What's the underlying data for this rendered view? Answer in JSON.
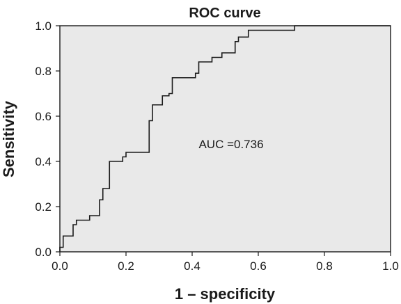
{
  "chart_data": {
    "type": "line",
    "title": "ROC curve",
    "xlabel": "1 – specificity",
    "ylabel": "Sensitivity",
    "xlim": [
      0,
      1
    ],
    "ylim": [
      0,
      1
    ],
    "x_ticks": [
      "0.0",
      "0.2",
      "0.4",
      "0.6",
      "0.8",
      "1.0"
    ],
    "y_ticks": [
      "0.0",
      "0.2",
      "0.4",
      "0.6",
      "0.8",
      "1.0"
    ],
    "grid": false,
    "annotations": [
      "AUC =0.736"
    ],
    "series": [
      {
        "step_points": [
          [
            0.0,
            0.02
          ],
          [
            0.01,
            0.07
          ],
          [
            0.04,
            0.12
          ],
          [
            0.05,
            0.14
          ],
          [
            0.09,
            0.16
          ],
          [
            0.12,
            0.23
          ],
          [
            0.13,
            0.28
          ],
          [
            0.15,
            0.4
          ],
          [
            0.19,
            0.42
          ],
          [
            0.2,
            0.44
          ],
          [
            0.27,
            0.58
          ],
          [
            0.28,
            0.65
          ],
          [
            0.31,
            0.69
          ],
          [
            0.33,
            0.7
          ],
          [
            0.34,
            0.77
          ],
          [
            0.41,
            0.79
          ],
          [
            0.42,
            0.84
          ],
          [
            0.46,
            0.86
          ],
          [
            0.49,
            0.88
          ],
          [
            0.53,
            0.93
          ],
          [
            0.54,
            0.95
          ],
          [
            0.57,
            0.98
          ],
          [
            0.71,
            1.0
          ],
          [
            1.0,
            1.0
          ]
        ]
      }
    ]
  }
}
